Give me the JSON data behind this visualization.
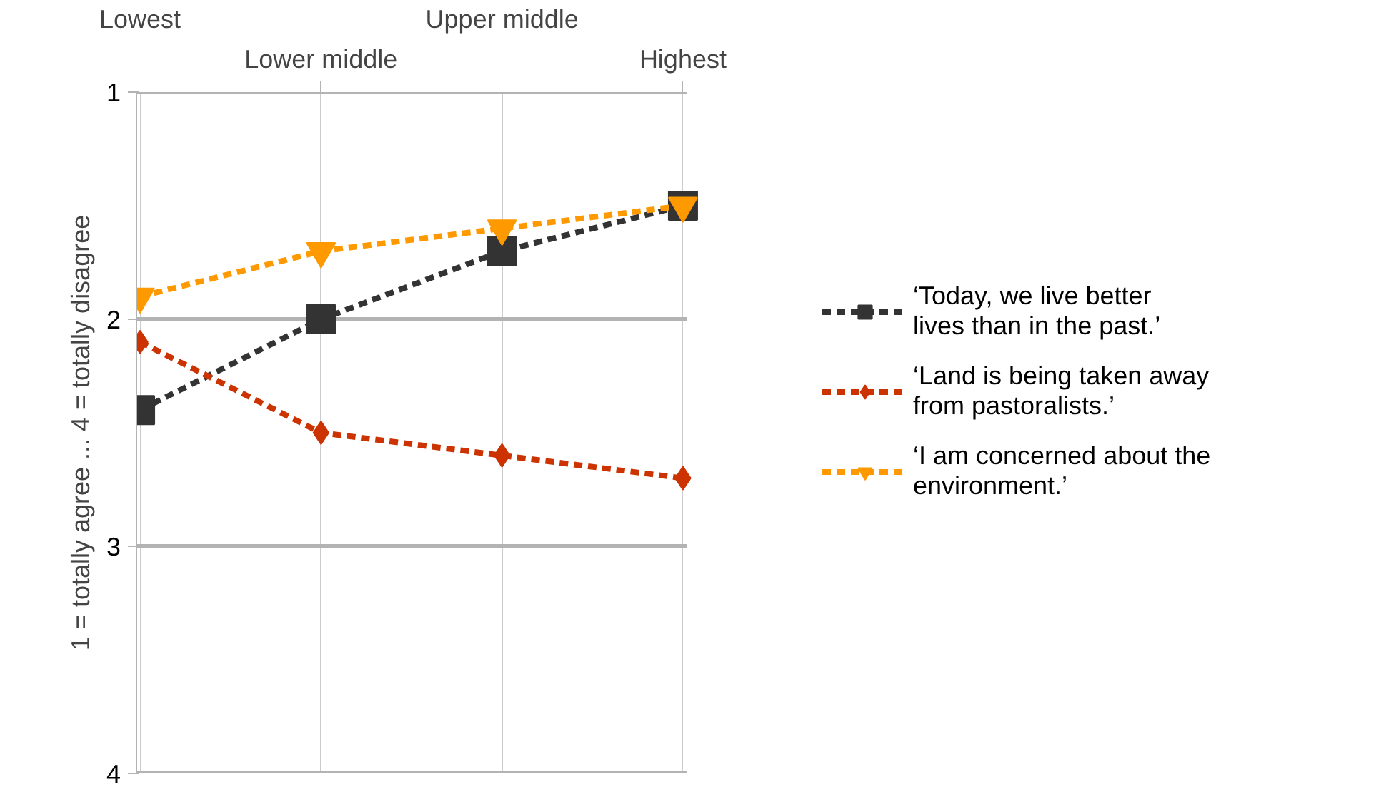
{
  "chart_data": {
    "type": "line",
    "ylabel": "1 = totally agree ... 4 = totally disagree",
    "categories": [
      "Lowest",
      "Lower middle",
      "Upper middle",
      "Highest"
    ],
    "series": [
      {
        "name": "‘Today, we live better lives than in the past.’",
        "color": "#333333",
        "marker": "square",
        "values": [
          2.4,
          2.0,
          1.7,
          1.5
        ]
      },
      {
        "name": "‘Land is being taken away from pastoralists.’",
        "color": "#cc3300",
        "marker": "diamond",
        "values": [
          2.1,
          2.5,
          2.6,
          2.7
        ]
      },
      {
        "name": "‘I am concerned about the environment.’",
        "color": "#ff9900",
        "marker": "triangle",
        "values": [
          1.9,
          1.7,
          1.6,
          1.5
        ]
      }
    ],
    "ylim": [
      4,
      1
    ],
    "yticks": [
      1,
      2,
      3,
      4
    ],
    "grid": true,
    "legend": "right",
    "line_style": "dashed"
  }
}
